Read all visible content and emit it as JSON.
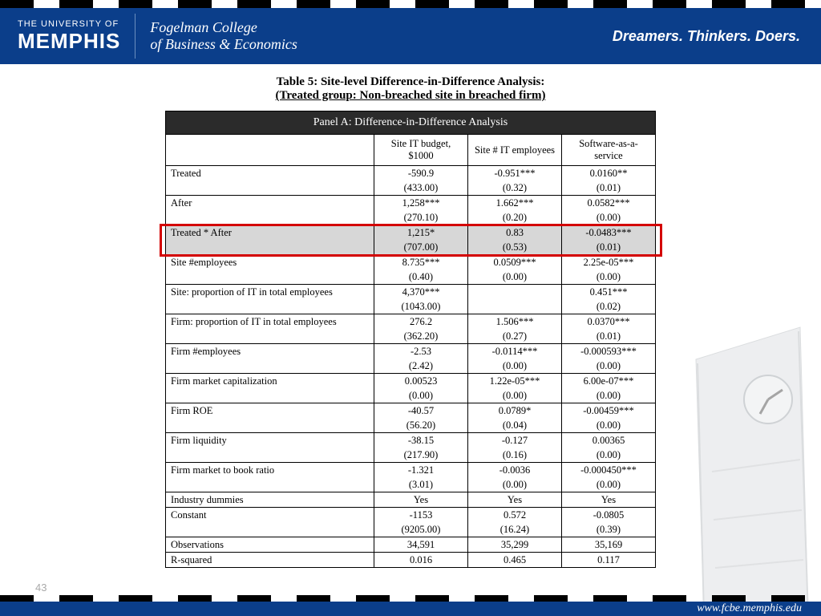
{
  "header": {
    "logo_top": "THE UNIVERSITY OF",
    "logo_main": "MEMPHIS",
    "college_line1": "Fogelman College",
    "college_line2": "of Business & Economics",
    "tagline": "Dreamers. Thinkers. Doers."
  },
  "title": "Table 5: Site-level Difference-in-Difference Analysis:",
  "subtitle": "(Treated group: Non-breached site in breached firm)",
  "panel_header": "Panel A: Difference-in-Difference Analysis",
  "columns": [
    "",
    "Site IT budget, $1000",
    "Site # IT employees",
    "Software-as-a-service"
  ],
  "rows": [
    {
      "label": "Treated",
      "vals": [
        "-590.9",
        "-0.951***",
        "0.0160**"
      ],
      "se": [
        "(433.00)",
        "(0.32)",
        "(0.01)"
      ]
    },
    {
      "label": "After",
      "vals": [
        "1,258***",
        "1.662***",
        "0.0582***"
      ],
      "se": [
        "(270.10)",
        "(0.20)",
        "(0.00)"
      ]
    },
    {
      "label": "Treated * After",
      "vals": [
        "1,215*",
        "0.83",
        "-0.0483***"
      ],
      "se": [
        "(707.00)",
        "(0.53)",
        "(0.01)"
      ],
      "highlight": true
    },
    {
      "label": "Site #employees",
      "vals": [
        "8.735***",
        "0.0509***",
        "2.25e-05***"
      ],
      "se": [
        "(0.40)",
        "(0.00)",
        "(0.00)"
      ]
    },
    {
      "label": "Site: proportion of IT in total employees",
      "vals": [
        "4,370***",
        "",
        "0.451***"
      ],
      "se": [
        "(1043.00)",
        "",
        "(0.02)"
      ]
    },
    {
      "label": "Firm: proportion of IT in total employees",
      "vals": [
        "276.2",
        "1.506***",
        "0.0370***"
      ],
      "se": [
        "(362.20)",
        "(0.27)",
        "(0.01)"
      ]
    },
    {
      "label": "Firm #employees",
      "vals": [
        "-2.53",
        "-0.0114***",
        "-0.000593***"
      ],
      "se": [
        "(2.42)",
        "(0.00)",
        "(0.00)"
      ]
    },
    {
      "label": "Firm market capitalization",
      "vals": [
        "0.00523",
        "1.22e-05***",
        "6.00e-07***"
      ],
      "se": [
        "(0.00)",
        "(0.00)",
        "(0.00)"
      ]
    },
    {
      "label": "Firm ROE",
      "vals": [
        "-40.57",
        "0.0789*",
        "-0.00459***"
      ],
      "se": [
        "(56.20)",
        "(0.04)",
        "(0.00)"
      ]
    },
    {
      "label": "Firm liquidity",
      "vals": [
        "-38.15",
        "-0.127",
        "0.00365"
      ],
      "se": [
        "(217.90)",
        "(0.16)",
        "(0.00)"
      ]
    },
    {
      "label": "Firm market to book ratio",
      "vals": [
        "-1.321",
        "-0.0036",
        "-0.000450***"
      ],
      "se": [
        "(3.01)",
        "(0.00)",
        "(0.00)"
      ]
    }
  ],
  "single_rows": [
    {
      "label": "Industry dummies",
      "vals": [
        "Yes",
        "Yes",
        "Yes"
      ]
    }
  ],
  "bottom_rows": [
    {
      "label": "Constant",
      "vals": [
        "-1153",
        "0.572",
        "-0.0805"
      ],
      "se": [
        "(9205.00)",
        "(16.24)",
        "(0.39)"
      ]
    }
  ],
  "final_rows": [
    {
      "label": "Observations",
      "vals": [
        "34,591",
        "35,299",
        "35,169"
      ]
    },
    {
      "label": "R-squared",
      "vals": [
        "0.016",
        "0.465",
        "0.117"
      ]
    }
  ],
  "page_number": "43",
  "footer_url": "www.fcbe.memphis.edu",
  "colors": {
    "header_bg": "#0b3e8a",
    "panel_bg": "#2b2b2b",
    "highlight_bg": "#d7d7d7",
    "box_border": "#d40000"
  }
}
